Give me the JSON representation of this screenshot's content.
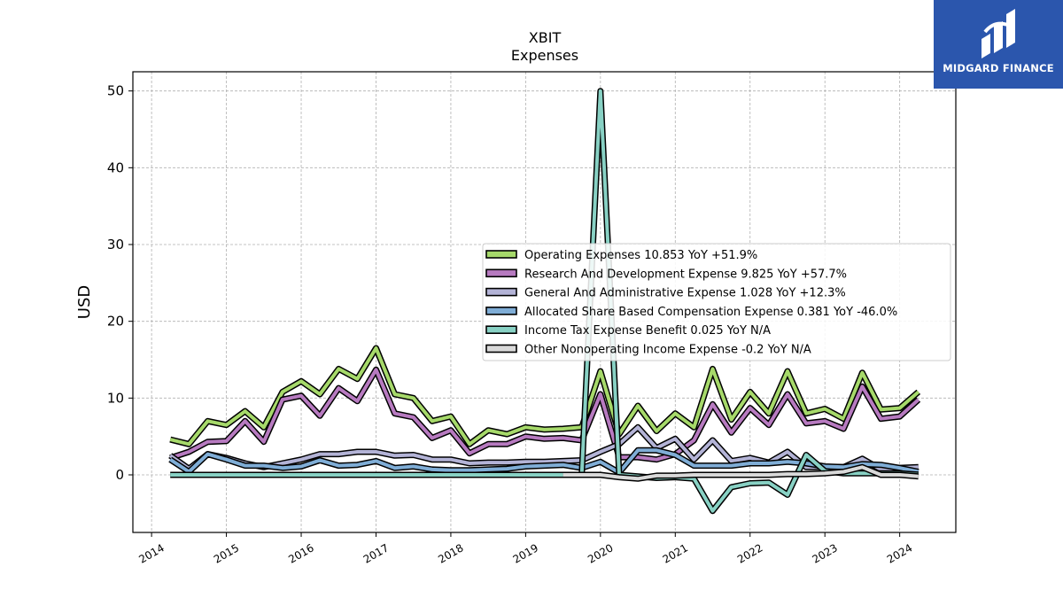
{
  "chart_data": {
    "type": "line",
    "title": "XBIT",
    "subtitle": "Expenses",
    "ylabel": "USD",
    "xlabel": "",
    "xlim": [
      2013.75,
      2024.75
    ],
    "ylim": [
      -7.5,
      52.5
    ],
    "x_ticks": [
      "2014",
      "2015",
      "2016",
      "2017",
      "2018",
      "2019",
      "2020",
      "2021",
      "2022",
      "2023",
      "2024"
    ],
    "y_ticks": [
      "0",
      "10",
      "20",
      "30",
      "40",
      "50"
    ],
    "grid": true,
    "legend_position": "center-right",
    "x": [
      2014.25,
      2014.5,
      2014.75,
      2015.0,
      2015.25,
      2015.5,
      2015.75,
      2016.0,
      2016.25,
      2016.5,
      2016.75,
      2017.0,
      2017.25,
      2017.5,
      2017.75,
      2018.0,
      2018.25,
      2018.5,
      2018.75,
      2019.0,
      2019.25,
      2019.5,
      2019.75,
      2020.0,
      2020.25,
      2020.5,
      2020.75,
      2021.0,
      2021.25,
      2021.5,
      2021.75,
      2022.0,
      2022.25,
      2022.5,
      2022.75,
      2023.0,
      2023.25,
      2023.5,
      2023.75,
      2024.0,
      2024.25
    ],
    "series": [
      {
        "name": "Operating Expenses",
        "legend": "Operating Expenses  10.853 YoY +51.9%",
        "color": "#a6d96a",
        "values": [
          4.6,
          4.0,
          7.0,
          6.5,
          8.3,
          6.2,
          10.8,
          12.2,
          10.5,
          13.8,
          12.5,
          16.5,
          10.5,
          10.0,
          7.0,
          7.6,
          4.0,
          5.8,
          5.3,
          6.2,
          5.9,
          6.0,
          6.2,
          13.5,
          5.3,
          9.0,
          5.7,
          8.0,
          6.2,
          13.8,
          7.2,
          10.8,
          8.0,
          13.5,
          8.0,
          8.6,
          7.3,
          13.3,
          8.5,
          8.7,
          10.8
        ]
      },
      {
        "name": "Research And Development Expense",
        "legend": "Research And Development Expense  9.825 YoY +57.7%",
        "color": "#b77ac0",
        "values": [
          2.2,
          3.0,
          4.3,
          4.4,
          7.0,
          4.3,
          9.8,
          10.3,
          7.7,
          11.3,
          9.6,
          13.7,
          8.0,
          7.5,
          4.8,
          5.8,
          2.8,
          4.0,
          4.0,
          5.0,
          4.7,
          4.8,
          4.5,
          10.5,
          2.3,
          2.3,
          2.0,
          2.7,
          4.5,
          9.2,
          5.5,
          8.7,
          6.5,
          10.5,
          6.7,
          7.0,
          6.0,
          11.5,
          7.3,
          7.6,
          9.8
        ]
      },
      {
        "name": "General And Administrative Expense",
        "legend": "General And Administrative Expense  1.028 YoY +12.3%",
        "color": "#b3b3d6",
        "values": [
          2.5,
          0.8,
          2.7,
          2.2,
          1.5,
          1.0,
          1.5,
          2.0,
          2.7,
          2.7,
          3.0,
          3.0,
          2.5,
          2.6,
          2.0,
          2.0,
          1.5,
          1.6,
          1.6,
          1.7,
          1.7,
          1.8,
          1.9,
          3.0,
          4.0,
          6.2,
          3.5,
          4.7,
          2.0,
          4.5,
          1.8,
          2.2,
          1.6,
          3.0,
          1.0,
          1.0,
          1.0,
          2.1,
          0.7,
          0.9,
          1.0
        ]
      },
      {
        "name": "Allocated Share Based Compensation Expense",
        "legend": "Allocated Share Based Compensation Expense  0.381 YoY -46.0%",
        "color": "#7fadd6",
        "values": [
          2.0,
          0.4,
          2.7,
          2.0,
          1.2,
          1.2,
          0.9,
          1.1,
          1.9,
          1.2,
          1.3,
          1.8,
          0.9,
          1.1,
          0.7,
          0.6,
          0.6,
          0.7,
          0.8,
          1.1,
          1.2,
          1.3,
          0.9,
          1.7,
          0.3,
          3.2,
          3.2,
          2.6,
          1.2,
          1.2,
          1.2,
          1.5,
          1.5,
          1.7,
          1.5,
          1.1,
          1.0,
          1.4,
          1.3,
          0.9,
          0.4
        ]
      },
      {
        "name": "Income Tax Expense Benefit",
        "legend": "Income Tax Expense Benefit  0.025 YoY N/A",
        "color": "#88d1c4",
        "values": [
          0.0,
          0.0,
          0.0,
          0.0,
          0.0,
          0.0,
          0.0,
          0.0,
          0.0,
          0.0,
          0.0,
          0.0,
          0.0,
          0.0,
          0.0,
          0.0,
          0.0,
          0.0,
          0.0,
          0.0,
          0.0,
          0.0,
          0.0,
          50.0,
          0.0,
          -0.2,
          -0.4,
          -0.3,
          -0.5,
          -4.7,
          -1.6,
          -1.1,
          -1.0,
          -2.6,
          2.6,
          0.5,
          0.2,
          0.2,
          0.2,
          0.2,
          0.02
        ]
      },
      {
        "name": "Other Nonoperating Income Expense",
        "legend": "Other Nonoperating Income Expense  -0.2 YoY N/A",
        "color": "#d9d9d9",
        "values": [
          null,
          null,
          null,
          null,
          null,
          null,
          null,
          null,
          null,
          null,
          null,
          null,
          null,
          null,
          null,
          null,
          null,
          null,
          null,
          null,
          null,
          0.0,
          0.0,
          0.0,
          -0.3,
          -0.5,
          -0.1,
          -0.1,
          0.0,
          0.0,
          0.0,
          0.0,
          0.0,
          0.1,
          0.1,
          0.2,
          0.4,
          1.0,
          0.0,
          0.0,
          -0.2
        ]
      }
    ]
  },
  "logo": {
    "text": "MIDGARD FINANCE",
    "color": "#2b56ad"
  }
}
